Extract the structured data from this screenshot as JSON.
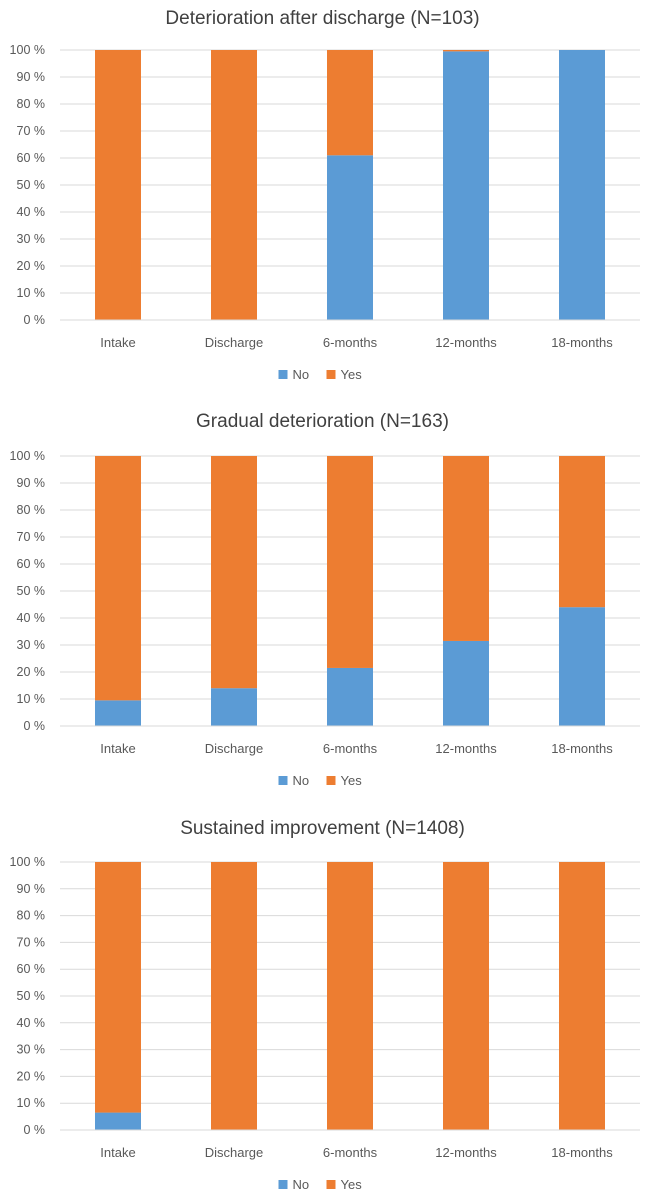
{
  "colors": {
    "no": "#5b9bd5",
    "yes": "#ed7d31",
    "grid": "#d9d9d9",
    "text": "#595959",
    "title": "#404040"
  },
  "chart_data": [
    {
      "type": "bar",
      "stacked": "percent",
      "title": "Deterioration after discharge (N=103)",
      "categories": [
        "Intake",
        "Discharge",
        "6-months",
        "12-months",
        "18-months"
      ],
      "series": [
        {
          "name": "No",
          "values": [
            0,
            0,
            61,
            99.5,
            100
          ]
        },
        {
          "name": "Yes",
          "values": [
            100,
            100,
            39,
            0.5,
            0
          ]
        }
      ],
      "ylim": [
        0,
        100
      ],
      "yticks": [
        "0 %",
        "10 %",
        "20 %",
        "30 %",
        "40 %",
        "50 %",
        "60 %",
        "70 %",
        "80 %",
        "90 %",
        "100 %"
      ],
      "legend": "bottom-center",
      "grid": true
    },
    {
      "type": "bar",
      "stacked": "percent",
      "title": "Gradual deterioration (N=163)",
      "categories": [
        "Intake",
        "Discharge",
        "6-months",
        "12-months",
        "18-months"
      ],
      "series": [
        {
          "name": "No",
          "values": [
            9.5,
            14,
            21.5,
            31.5,
            44
          ]
        },
        {
          "name": "Yes",
          "values": [
            90.5,
            86,
            78.5,
            68.5,
            56
          ]
        }
      ],
      "ylim": [
        0,
        100
      ],
      "yticks": [
        "0 %",
        "10 %",
        "20 %",
        "30 %",
        "40 %",
        "50 %",
        "60 %",
        "70 %",
        "80 %",
        "90 %",
        "100 %"
      ],
      "legend": "bottom-center",
      "grid": true
    },
    {
      "type": "bar",
      "stacked": "percent",
      "title": "Sustained improvement (N=1408)",
      "categories": [
        "Intake",
        "Discharge",
        "6-months",
        "12-months",
        "18-months"
      ],
      "series": [
        {
          "name": "No",
          "values": [
            6.5,
            0,
            0,
            0,
            0
          ]
        },
        {
          "name": "Yes",
          "values": [
            93.5,
            100,
            100,
            100,
            100
          ]
        }
      ],
      "ylim": [
        0,
        100
      ],
      "yticks": [
        "0 %",
        "10 %",
        "20 %",
        "30 %",
        "40 %",
        "50 %",
        "60 %",
        "70 %",
        "80 %",
        "90 %",
        "100 %"
      ],
      "legend": "bottom-center",
      "grid": true
    }
  ]
}
